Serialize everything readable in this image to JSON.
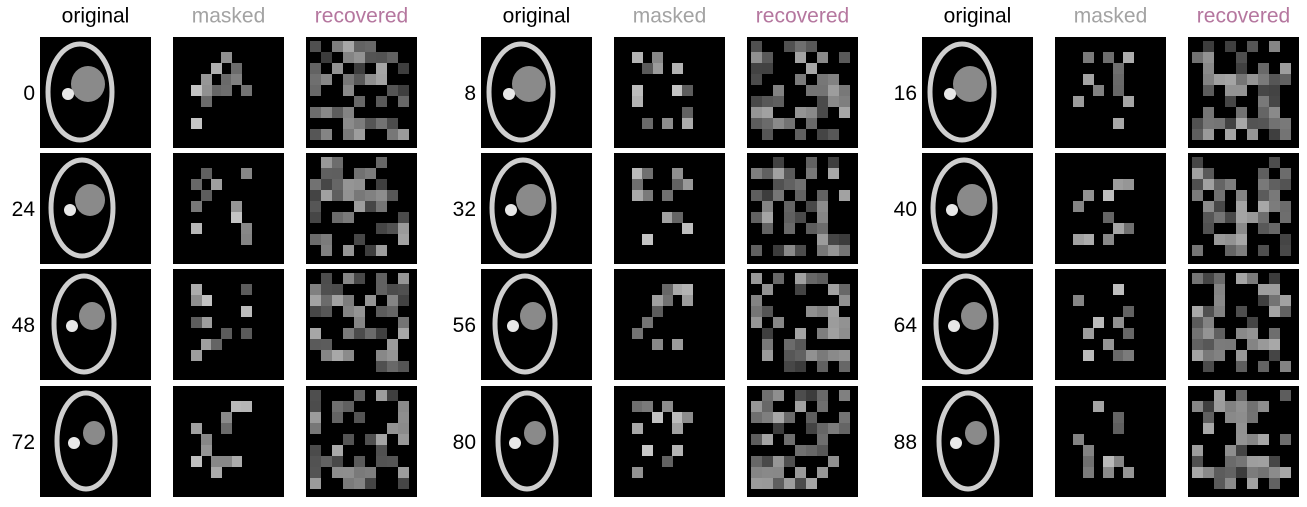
{
  "groups": [
    {
      "headers": [
        "original",
        "masked",
        "recovered"
      ],
      "labels": [
        "0",
        "24",
        "48",
        "72"
      ]
    },
    {
      "headers": [
        "original",
        "masked",
        "recovered"
      ],
      "labels": [
        "8",
        "32",
        "56",
        "80"
      ]
    },
    {
      "headers": [
        "original",
        "masked",
        "recovered"
      ],
      "labels": [
        "16",
        "40",
        "64",
        "88"
      ]
    }
  ]
}
